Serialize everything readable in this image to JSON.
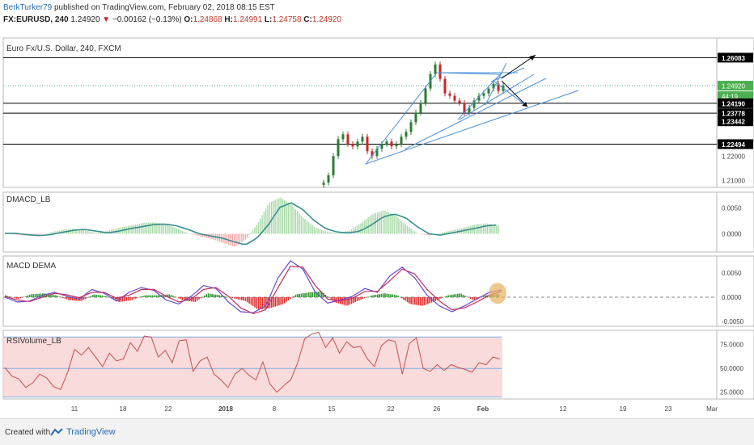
{
  "header": {
    "user": "BerkTurker79",
    "published": " published on TradingView.com, February 02, 2018 08:15 EST",
    "symbol": "FX:EURUSD, 240",
    "last": " 1.24920",
    "arrow": "▼",
    "change": " −0.00162 (−0.13%)",
    "o_label": " O:",
    "o_val": "1.24868",
    "h_label": " H:",
    "h_val": "1.24991",
    "l_label": " L:",
    "l_val": "1.24758",
    "c_label": " C:",
    "c_val": "1.24920"
  },
  "footer": {
    "created": "Created with",
    "brand": "TradingView"
  },
  "colors": {
    "up": "#2e7d32",
    "down": "#c62828",
    "hline": "#000000",
    "trend": "#4a90d9",
    "dmacd_line": "#3a8e8e",
    "dmacd_hist_pos": "#a6d8a6",
    "dmacd_hist_neg": "#f2aaaa",
    "macd_line": "#6a4ad0",
    "signal_line": "#c03060",
    "rsi_fill": "#fadbdb",
    "rsi_line": "#c05050",
    "last_price_tag": "#4caf50"
  },
  "chart_data": [
    {
      "type": "candlestick",
      "title": "Euro Fx/U.S. Dollar, 240, FXCM",
      "ylim": [
        1.207,
        1.269
      ],
      "price_axis_labels": [
        "1.26083",
        "1.24920",
        "44:19",
        "1.24190",
        "1.23778",
        "1.23442",
        "1.22494",
        "1.22000",
        "1.21000"
      ],
      "horizontal_levels": [
        1.26083,
        1.2419,
        1.23778,
        1.22494
      ],
      "last_price": 1.2492,
      "countdown": "44:19",
      "x_tick_labels": [
        "11",
        "18",
        "22",
        "2018",
        "8",
        "15",
        "22",
        "26",
        "Feb",
        "12",
        "19",
        "23",
        "Mar"
      ],
      "closes": [
        1.209,
        1.212,
        1.22,
        1.227,
        1.229,
        1.225,
        1.224,
        1.226,
        1.228,
        1.222,
        1.22,
        1.223,
        1.225,
        1.226,
        1.224,
        1.225,
        1.228,
        1.23,
        1.234,
        1.238,
        1.242,
        1.248,
        1.254,
        1.258,
        1.252,
        1.246,
        1.245,
        1.243,
        1.242,
        1.238,
        1.24,
        1.243,
        1.245,
        1.246,
        1.248,
        1.25,
        1.247,
        1.2492
      ]
    },
    {
      "type": "bar",
      "title": "DMACD_LB",
      "ylim": [
        -0.0035,
        0.008
      ],
      "y_tick_labels": [
        "0.0050",
        "0.0000"
      ],
      "series": [
        {
          "values": [
            0.0001,
            -0.0002,
            -0.0004,
            -0.0002,
            0.0003,
            0.0008,
            0.001,
            0.0006,
            0.0002,
            0.0006,
            0.0012,
            0.0016,
            0.0021,
            0.0022,
            0.0018,
            0.001,
            0.0,
            -0.0005,
            -0.001,
            -0.0018,
            -0.0025,
            -0.001,
            0.002,
            0.006,
            0.007,
            0.0055,
            0.003,
            0.0012,
            0.0004,
            0.0002,
            0.0006,
            0.002,
            0.0038,
            0.0045,
            0.0036,
            0.0016,
            0.0,
            -0.0003,
            0.0002,
            0.0007,
            0.0012,
            0.0018,
            0.002,
            0.0016
          ]
        }
      ]
    },
    {
      "type": "line",
      "title": "MACD DEMA",
      "ylim": [
        -0.006,
        0.0085
      ],
      "y_tick_labels": [
        "0.0050",
        "0.0000",
        "-0.0050"
      ],
      "series": [
        {
          "values": [
            0.0,
            -0.001,
            -0.0008,
            0.0004,
            0.001,
            0.0002,
            -0.0004,
            0.0016,
            0.0008,
            -0.0008,
            0.001,
            0.002,
            0.0014,
            -0.0006,
            -0.0014,
            0.0002,
            0.0024,
            0.0018,
            -0.001,
            -0.003,
            -0.0032,
            -0.0018,
            0.004,
            0.0075,
            0.0058,
            0.001,
            -0.0012,
            -0.0006,
            0.0002,
            0.0018,
            0.001,
            0.0044,
            0.0062,
            0.004,
            0.0004,
            -0.0018,
            -0.003,
            -0.0018,
            -0.0004,
            0.001,
            0.0015
          ]
        },
        {
          "values": [
            0.0002,
            -0.0006,
            -0.0009,
            0.0,
            0.0008,
            0.0005,
            -0.0001,
            0.001,
            0.001,
            -0.0002,
            0.0004,
            0.0016,
            0.0016,
            0.0002,
            -0.001,
            -0.0004,
            0.0016,
            0.002,
            0.0002,
            -0.0022,
            -0.0034,
            -0.0026,
            0.002,
            0.0064,
            0.0062,
            0.0024,
            -0.0004,
            -0.0008,
            -0.0002,
            0.0012,
            0.0012,
            0.0034,
            0.0058,
            0.0048,
            0.0016,
            -0.0008,
            -0.0026,
            -0.0022,
            -0.001,
            0.0004,
            0.0012
          ]
        }
      ],
      "histogram": [
        0.0004,
        -0.0004,
        0.0006,
        0.0008,
        0.0004,
        -0.0006,
        -0.0008,
        0.0006,
        0.0002,
        -0.001,
        -0.0006,
        0.0004,
        0.0004,
        0.0006,
        -0.0006,
        -0.001,
        0.0008,
        0.0004,
        -0.0002,
        -0.0008,
        -0.0026,
        -0.0022,
        -0.0014,
        0.0006,
        0.001,
        0.0012,
        -0.001,
        -0.0018,
        -0.0006,
        0.0004,
        0.0008,
        0.0004,
        -0.0014,
        -0.0018,
        -0.0008,
        0.0004,
        0.0008,
        -0.0006,
        0.0004,
        0.0006
      ]
    },
    {
      "type": "line",
      "title": "RSIVolume_LB",
      "ylim": [
        18,
        90
      ],
      "y_tick_labels": [
        "75.0000",
        "50.0000",
        "25.0000"
      ],
      "series": [
        {
          "values": [
            51,
            42,
            39,
            30,
            35,
            44,
            40,
            31,
            28,
            46,
            70,
            64,
            72,
            62,
            52,
            66,
            58,
            60,
            77,
            68,
            84,
            83,
            62,
            69,
            56,
            79,
            80,
            47,
            58,
            62,
            44,
            38,
            30,
            44,
            50,
            43,
            38,
            57,
            34,
            25,
            32,
            38,
            56,
            81,
            86,
            88,
            72,
            82,
            66,
            78,
            72,
            73,
            60,
            52,
            74,
            80,
            78,
            44,
            76,
            82,
            50,
            47,
            54,
            48,
            54,
            51,
            49,
            46,
            56,
            54,
            62,
            60
          ]
        }
      ]
    }
  ]
}
